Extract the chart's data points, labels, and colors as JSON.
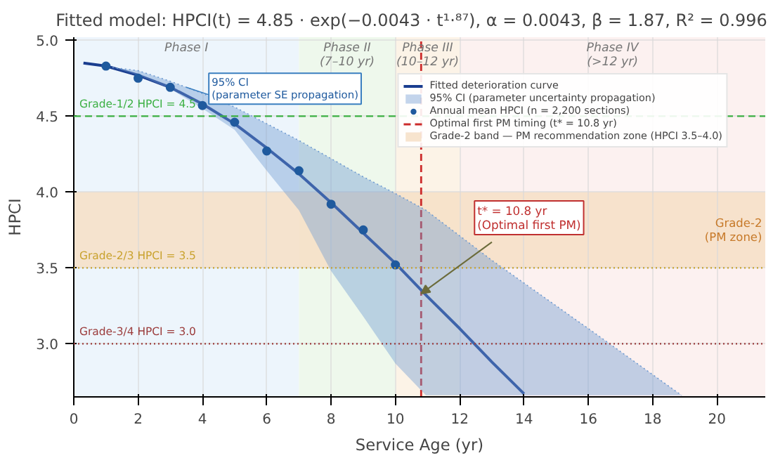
{
  "chart_data": {
    "type": "line",
    "title": "Fitted model: HPCI(t) = 4.85 · exp(−0.0043 · t¹·⁸⁷),  α = 0.0043,  β = 1.87,  R² = 0.996",
    "xlabel": "Service Age (yr)",
    "ylabel": "HPCI",
    "xlim": [
      0,
      21.5
    ],
    "ylim": [
      2.65,
      5.02
    ],
    "xticks": [
      0,
      2,
      4,
      6,
      8,
      10,
      12,
      14,
      16,
      18,
      20
    ],
    "yticks": [
      {
        "value": 3,
        "label": "3.0"
      },
      {
        "value": 3.5,
        "label": "3.5"
      },
      {
        "value": 4,
        "label": "4.0"
      },
      {
        "value": 4.5,
        "label": "4.5"
      },
      {
        "value": 5,
        "label": "5.0"
      }
    ],
    "grid": true,
    "legend": "top right",
    "series": [
      {
        "name": "Fitted deterioration curve",
        "color": "#1a3d8f",
        "marker": "none",
        "line_style": "solid",
        "x": [
          0.3,
          1,
          2,
          3,
          4,
          5,
          6,
          7,
          8,
          9,
          10,
          11,
          12,
          13,
          14
        ],
        "values": [
          4.85,
          4.83,
          4.77,
          4.69,
          4.58,
          4.45,
          4.29,
          4.12,
          3.93,
          3.73,
          3.53,
          3.31,
          3.1,
          2.88,
          2.67
        ]
      },
      {
        "name": "95% CI (parameter uncertainty propagation)",
        "type": "line",
        "line_style": "dotted",
        "marker": "none",
        "color": "#6f9bd1",
        "x": [
          1.2,
          2,
          3,
          4,
          5,
          6,
          7,
          8,
          9,
          10,
          10.95,
          13,
          16,
          18.9
        ],
        "lower": [
          4.82,
          4.77,
          4.68,
          4.55,
          4.41,
          4.14,
          3.88,
          3.48,
          3.18,
          2.87,
          2.66,
          2.66,
          2.66,
          2.66
        ],
        "values": [
          4.82,
          4.8,
          4.73,
          4.65,
          4.56,
          4.45,
          4.34,
          4.22,
          4.1,
          3.99,
          3.88,
          3.55,
          3.1,
          2.66
        ],
        "upper": [
          4.82,
          4.8,
          4.73,
          4.65,
          4.56,
          4.45,
          4.34,
          4.22,
          4.1,
          3.99,
          3.88,
          3.55,
          3.1,
          2.66
        ]
      },
      {
        "name": "Annual mean HPCI (n = 2,200 sections)",
        "type": "scatter",
        "color": "#1f5a9e",
        "marker": "circle",
        "x": [
          1,
          2,
          3,
          4,
          5,
          6,
          7,
          8,
          9,
          10
        ],
        "values": [
          4.83,
          4.75,
          4.69,
          4.57,
          4.46,
          4.27,
          4.14,
          3.92,
          3.75,
          3.52
        ]
      }
    ],
    "ref_lines": [
      {
        "axis": "x",
        "value": 10.8,
        "label": "Optimal first PM timing (t* = 10.8 yr)",
        "color": "#cc2b2b",
        "line_style": "dashed"
      },
      {
        "axis": "y",
        "value": 4.5,
        "label": "Grade-1/2  HPCI = 4.5",
        "color": "#3cb043",
        "line_style": "dashed"
      },
      {
        "axis": "y",
        "value": 3.5,
        "label": "Grade-2/3  HPCI = 3.5",
        "color": "#c9a22e",
        "line_style": "dotted"
      },
      {
        "axis": "y",
        "value": 3.0,
        "label": "Grade-3/4  HPCI = 3.0",
        "color": "#9b3b3b",
        "line_style": "dotted"
      }
    ],
    "bands": [
      {
        "axis": "x",
        "from": 0,
        "to": 7,
        "label": "Phase I",
        "color": "#edf5fc"
      },
      {
        "axis": "x",
        "from": 7,
        "to": 10,
        "label": "Phase II\n(7–10 yr)",
        "color": "#eef8ec"
      },
      {
        "axis": "x",
        "from": 10,
        "to": 12,
        "label": "Phase III\n(10–12 yr)",
        "color": "#fcf3e7"
      },
      {
        "axis": "x",
        "from": 12,
        "to": 21.5,
        "label": "Phase IV\n(>12 yr)",
        "color": "#fcf1f0"
      },
      {
        "axis": "y",
        "from": 3.5,
        "to": 4.0,
        "label": "Grade-2 band — PM recommendation zone (HPCI 3.5–4.0)",
        "color": "#f6dfc6"
      }
    ],
    "annotations": [
      {
        "text": "95% CI\n(parameter SE propagation)",
        "x": 3.5,
        "y": 4.69
      },
      {
        "text": "t* = 10.8 yr\n(Optimal first PM)",
        "x": 10.8,
        "y": 3.33
      },
      {
        "text": "Grade-2\n(PM zone)",
        "x": 21.4,
        "y": 3.75
      }
    ]
  }
}
